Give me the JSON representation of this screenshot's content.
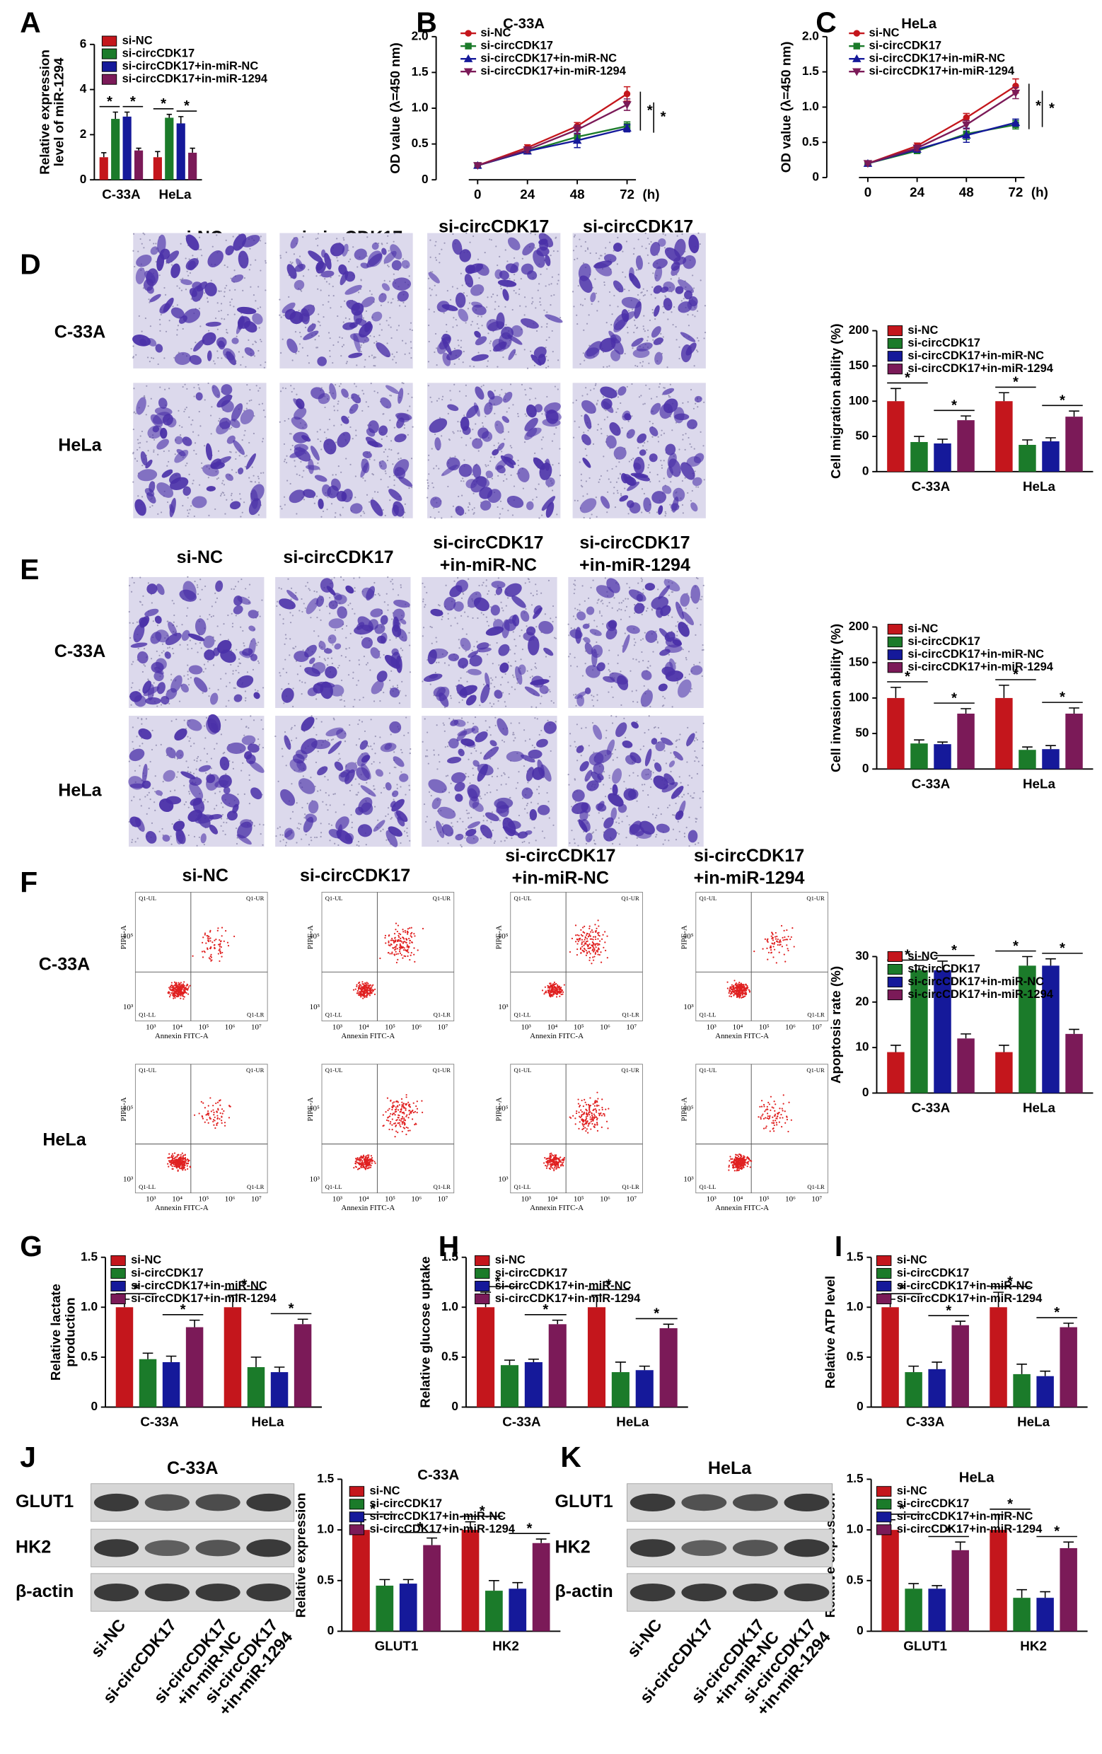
{
  "chart_data": [
    {
      "type": "bar",
      "y_label": [
        "Relative expression",
        "level of miR-1294"
      ],
      "categories": [
        "C-33A",
        "HeLa"
      ],
      "series": [
        {
          "name": "si-NC",
          "color": "#c4161c",
          "values": [
            1,
            1
          ],
          "errors": [
            0.2,
            0.25
          ]
        },
        {
          "name": "si-circCDK17",
          "color": "#1b7b2a",
          "values": [
            2.7,
            2.75
          ],
          "errors": [
            0.3,
            0.15
          ]
        },
        {
          "name": "si-circCDK17+in-miR-NC",
          "color": "#15199a",
          "values": [
            2.8,
            2.5
          ],
          "errors": [
            0.2,
            0.3
          ]
        },
        {
          "name": "si-circCDK17+in-miR-1294",
          "color": "#7b1a58",
          "values": [
            1.3,
            1.2
          ],
          "errors": [
            0.1,
            0.2
          ]
        }
      ],
      "ylim": [
        0,
        6
      ],
      "yticks": [
        0,
        2,
        4,
        6
      ],
      "significance_label": "*"
    },
    {
      "type": "line",
      "title": "C-33A",
      "y_label": "OD value (λ=450 nm)",
      "x": [
        0,
        24,
        48,
        72
      ],
      "x_label": "(h)",
      "xlim": [
        -20,
        80
      ],
      "xticks": [
        0,
        24,
        48,
        72
      ],
      "series": [
        {
          "name": "si-NC",
          "color": "#c4161c",
          "marker": "circle",
          "values": [
            0.2,
            0.45,
            0.75,
            1.2
          ],
          "errors": [
            0.02,
            0.04,
            0.05,
            0.1
          ]
        },
        {
          "name": "si-circCDK17",
          "color": "#1b7b2a",
          "marker": "square",
          "values": [
            0.2,
            0.4,
            0.6,
            0.75
          ],
          "errors": [
            0.02,
            0.04,
            0.08,
            0.06
          ]
        },
        {
          "name": "si-circCDK17+in-miR-NC",
          "color": "#15199a",
          "marker": "triangle-up",
          "values": [
            0.2,
            0.4,
            0.55,
            0.72
          ],
          "errors": [
            0.02,
            0.04,
            0.1,
            0.05
          ]
        },
        {
          "name": "si-circCDK17+in-miR-1294",
          "color": "#7b1a58",
          "marker": "triangle-down",
          "values": [
            0.2,
            0.42,
            0.7,
            1.05
          ],
          "errors": [
            0.02,
            0.04,
            0.06,
            0.08
          ]
        }
      ],
      "ylim": [
        0,
        2
      ],
      "yticks": [
        0,
        0.5,
        {
          "value": 1,
          "label": "1.0"
        },
        1.5,
        {
          "value": 2,
          "label": "2.0"
        }
      ],
      "significance_label": "*"
    },
    {
      "type": "line",
      "title": "HeLa",
      "y_label": "OD value (λ=450 nm)",
      "x": [
        0,
        24,
        48,
        72
      ],
      "x_label": "(h)",
      "xlim": [
        -20,
        80
      ],
      "xticks": [
        0,
        24,
        48,
        72
      ],
      "series": [
        {
          "name": "si-NC",
          "color": "#c4161c",
          "marker": "circle",
          "values": [
            0.2,
            0.45,
            0.85,
            1.3
          ],
          "errors": [
            0.02,
            0.04,
            0.06,
            0.1
          ]
        },
        {
          "name": "si-circCDK17",
          "color": "#1b7b2a",
          "marker": "square",
          "values": [
            0.2,
            0.38,
            0.62,
            0.75
          ],
          "errors": [
            0.02,
            0.04,
            0.08,
            0.06
          ]
        },
        {
          "name": "si-circCDK17+in-miR-NC",
          "color": "#15199a",
          "marker": "triangle-up",
          "values": [
            0.2,
            0.4,
            0.6,
            0.78
          ],
          "errors": [
            0.02,
            0.04,
            0.1,
            0.05
          ]
        },
        {
          "name": "si-circCDK17+in-miR-1294",
          "color": "#7b1a58",
          "marker": "triangle-down",
          "values": [
            0.2,
            0.42,
            0.75,
            1.2
          ],
          "errors": [
            0.02,
            0.04,
            0.06,
            0.08
          ]
        }
      ],
      "ylim": [
        0,
        2
      ],
      "yticks": [
        0,
        0.5,
        {
          "value": 1,
          "label": "1.0"
        },
        1.5,
        {
          "value": 2,
          "label": "2.0"
        }
      ],
      "significance_label": "*"
    },
    {
      "type": "bar",
      "y_label": "Cell migration ability (%)",
      "categories": [
        "C-33A",
        "HeLa"
      ],
      "series": [
        {
          "name": "si-NC",
          "color": "#c4161c",
          "values": [
            100,
            100
          ],
          "errors": [
            18,
            12
          ]
        },
        {
          "name": "si-circCDK17",
          "color": "#1b7b2a",
          "values": [
            42,
            38
          ],
          "errors": [
            8,
            7
          ]
        },
        {
          "name": "si-circCDK17+in-miR-NC",
          "color": "#15199a",
          "values": [
            40,
            43
          ],
          "errors": [
            6,
            5
          ]
        },
        {
          "name": "si-circCDK17+in-miR-1294",
          "color": "#7b1a58",
          "values": [
            73,
            78
          ],
          "errors": [
            6,
            8
          ]
        }
      ],
      "ylim": [
        0,
        200
      ],
      "yticks": [
        0,
        50,
        100,
        150,
        200
      ],
      "significance_label": "*"
    },
    {
      "type": "bar",
      "y_label": "Cell invasion ability (%)",
      "categories": [
        "C-33A",
        "HeLa"
      ],
      "series": [
        {
          "name": "si-NC",
          "color": "#c4161c",
          "values": [
            100,
            100
          ],
          "errors": [
            15,
            18
          ]
        },
        {
          "name": "si-circCDK17",
          "color": "#1b7b2a",
          "values": [
            36,
            27
          ],
          "errors": [
            5,
            4
          ]
        },
        {
          "name": "si-circCDK17+in-miR-NC",
          "color": "#15199a",
          "values": [
            35,
            28
          ],
          "errors": [
            3,
            5
          ]
        },
        {
          "name": "si-circCDK17+in-miR-1294",
          "color": "#7b1a58",
          "values": [
            78,
            78
          ],
          "errors": [
            7,
            8
          ]
        }
      ],
      "ylim": [
        0,
        200
      ],
      "yticks": [
        0,
        50,
        100,
        150,
        200
      ],
      "significance_label": "*"
    },
    {
      "type": "bar",
      "y_label": "Apoptosis rate (%)",
      "categories": [
        "C-33A",
        "HeLa"
      ],
      "series": [
        {
          "name": "si-NC",
          "color": "#c4161c",
          "values": [
            9,
            9
          ],
          "errors": [
            1.5,
            1.5
          ]
        },
        {
          "name": "si-circCDK17",
          "color": "#1b7b2a",
          "values": [
            27,
            28
          ],
          "errors": [
            1,
            2
          ]
        },
        {
          "name": "si-circCDK17+in-miR-NC",
          "color": "#15199a",
          "values": [
            27,
            28
          ],
          "errors": [
            2,
            1.5
          ]
        },
        {
          "name": "si-circCDK17+in-miR-1294",
          "color": "#7b1a58",
          "values": [
            12,
            13
          ],
          "errors": [
            1,
            1
          ]
        }
      ],
      "ylim": [
        0,
        30
      ],
      "yticks": [
        0,
        10,
        20,
        30
      ],
      "significance_label": "*"
    },
    {
      "type": "bar",
      "y_label": [
        "Relative lactate",
        "production"
      ],
      "categories": [
        "C-33A",
        "HeLa"
      ],
      "series": [
        {
          "name": "si-NC",
          "color": "#c4161c",
          "values": [
            1,
            1
          ],
          "errors": [
            0.08,
            0.12
          ]
        },
        {
          "name": "si-circCDK17",
          "color": "#1b7b2a",
          "values": [
            0.48,
            0.4
          ],
          "errors": [
            0.06,
            0.1
          ]
        },
        {
          "name": "si-circCDK17+in-miR-NC",
          "color": "#15199a",
          "values": [
            0.45,
            0.35
          ],
          "errors": [
            0.06,
            0.05
          ]
        },
        {
          "name": "si-circCDK17+in-miR-1294",
          "color": "#7b1a58",
          "values": [
            0.8,
            0.83
          ],
          "errors": [
            0.07,
            0.05
          ]
        }
      ],
      "ylim": [
        0,
        1.5
      ],
      "yticks": [
        0,
        0.5,
        {
          "value": 1,
          "label": "1.0"
        },
        1.5
      ],
      "significance_label": "*"
    },
    {
      "type": "bar",
      "y_label": "Relative glucose uptake",
      "categories": [
        "C-33A",
        "HeLa"
      ],
      "series": [
        {
          "name": "si-NC",
          "color": "#c4161c",
          "values": [
            1,
            1
          ],
          "errors": [
            0.15,
            0.12
          ]
        },
        {
          "name": "si-circCDK17",
          "color": "#1b7b2a",
          "values": [
            0.42,
            0.35
          ],
          "errors": [
            0.05,
            0.1
          ]
        },
        {
          "name": "si-circCDK17+in-miR-NC",
          "color": "#15199a",
          "values": [
            0.45,
            0.37
          ],
          "errors": [
            0.03,
            0.04
          ]
        },
        {
          "name": "si-circCDK17+in-miR-1294",
          "color": "#7b1a58",
          "values": [
            0.83,
            0.79
          ],
          "errors": [
            0.04,
            0.04
          ]
        }
      ],
      "ylim": [
        0,
        1.5
      ],
      "yticks": [
        0,
        0.5,
        {
          "value": 1,
          "label": "1.0"
        },
        1.5
      ],
      "significance_label": "*"
    },
    {
      "type": "bar",
      "y_label": "Relative ATP level",
      "categories": [
        "C-33A",
        "HeLa"
      ],
      "series": [
        {
          "name": "si-NC",
          "color": "#c4161c",
          "values": [
            1,
            1
          ],
          "errors": [
            0.08,
            0.15
          ]
        },
        {
          "name": "si-circCDK17",
          "color": "#1b7b2a",
          "values": [
            0.35,
            0.33
          ],
          "errors": [
            0.06,
            0.1
          ]
        },
        {
          "name": "si-circCDK17+in-miR-NC",
          "color": "#15199a",
          "values": [
            0.38,
            0.31
          ],
          "errors": [
            0.07,
            0.05
          ]
        },
        {
          "name": "si-circCDK17+in-miR-1294",
          "color": "#7b1a58",
          "values": [
            0.82,
            0.8
          ],
          "errors": [
            0.04,
            0.04
          ]
        }
      ],
      "ylim": [
        0,
        1.5
      ],
      "yticks": [
        0,
        0.5,
        {
          "value": 1,
          "label": "1.0"
        },
        1.5
      ],
      "significance_label": "*"
    },
    {
      "type": "bar",
      "title": "C-33A",
      "y_label": "Relative expression",
      "categories": [
        "GLUT1",
        "HK2"
      ],
      "series": [
        {
          "name": "si-NC",
          "color": "#c4161c",
          "values": [
            1,
            1
          ],
          "errors": [
            0.1,
            0.08
          ]
        },
        {
          "name": "si-circCDK17",
          "color": "#1b7b2a",
          "values": [
            0.45,
            0.4
          ],
          "errors": [
            0.06,
            0.1
          ]
        },
        {
          "name": "si-circCDK17+in-miR-NC",
          "color": "#15199a",
          "values": [
            0.47,
            0.42
          ],
          "errors": [
            0.04,
            0.06
          ]
        },
        {
          "name": "si-circCDK17+in-miR-1294",
          "color": "#7b1a58",
          "values": [
            0.85,
            0.87
          ],
          "errors": [
            0.07,
            0.04
          ]
        }
      ],
      "ylim": [
        0,
        1.5
      ],
      "yticks": [
        0,
        0.5,
        {
          "value": 1,
          "label": "1.0"
        },
        1.5
      ],
      "significance_label": "*"
    },
    {
      "type": "bar",
      "title": "HeLa",
      "y_label": "Relative expression",
      "categories": [
        "GLUT1",
        "HK2"
      ],
      "series": [
        {
          "name": "si-NC",
          "color": "#c4161c",
          "values": [
            1,
            1
          ],
          "errors": [
            0.1,
            0.15
          ]
        },
        {
          "name": "si-circCDK17",
          "color": "#1b7b2a",
          "values": [
            0.42,
            0.33
          ],
          "errors": [
            0.05,
            0.08
          ]
        },
        {
          "name": "si-circCDK17+in-miR-NC",
          "color": "#15199a",
          "values": [
            0.42,
            0.33
          ],
          "errors": [
            0.03,
            0.06
          ]
        },
        {
          "name": "si-circCDK17+in-miR-1294",
          "color": "#7b1a58",
          "values": [
            0.8,
            0.82
          ],
          "errors": [
            0.08,
            0.06
          ]
        }
      ],
      "ylim": [
        0,
        1.5
      ],
      "yticks": [
        0,
        0.5,
        {
          "value": 1,
          "label": "1.0"
        },
        1.5
      ],
      "significance_label": "*"
    }
  ],
  "figure": {
    "panel_letters": [
      "A",
      "B",
      "C",
      "D",
      "E",
      "F",
      "G",
      "H",
      "I",
      "J",
      "K"
    ],
    "image_panels": {
      "columns": [
        [
          "si-NC"
        ],
        [
          "si-circCDK17"
        ],
        [
          "si-circCDK17",
          "+in-miR-NC"
        ],
        [
          "si-circCDK17",
          "+in-miR-1294"
        ]
      ],
      "rows": [
        "C-33A",
        "HeLa"
      ]
    },
    "flow_plot": {
      "quadrants": [
        "Q1-UL",
        "Q1-UR",
        "Q1-LL",
        "Q1-LR"
      ],
      "x_label": "Annexin FITC-A",
      "y_label": "PIPE-A",
      "x_ticks": [
        "10³",
        "10⁴",
        "10⁵",
        "10⁶",
        "10⁷"
      ],
      "y_ticks": [
        "10³",
        "10⁵"
      ]
    },
    "blots": [
      {
        "title": "C-33A",
        "proteins": [
          "GLUT1",
          "HK2",
          "β-actin"
        ]
      },
      {
        "title": "HeLa",
        "proteins": [
          "GLUT1",
          "HK2",
          "β-actin"
        ]
      }
    ],
    "blot_lanes": [
      [
        "si-NC"
      ],
      [
        "si-circCDK17"
      ],
      [
        "si-circCDK17",
        "+in-miR-NC"
      ],
      [
        "si-circCDK17",
        "+in-miR-1294"
      ]
    ]
  }
}
